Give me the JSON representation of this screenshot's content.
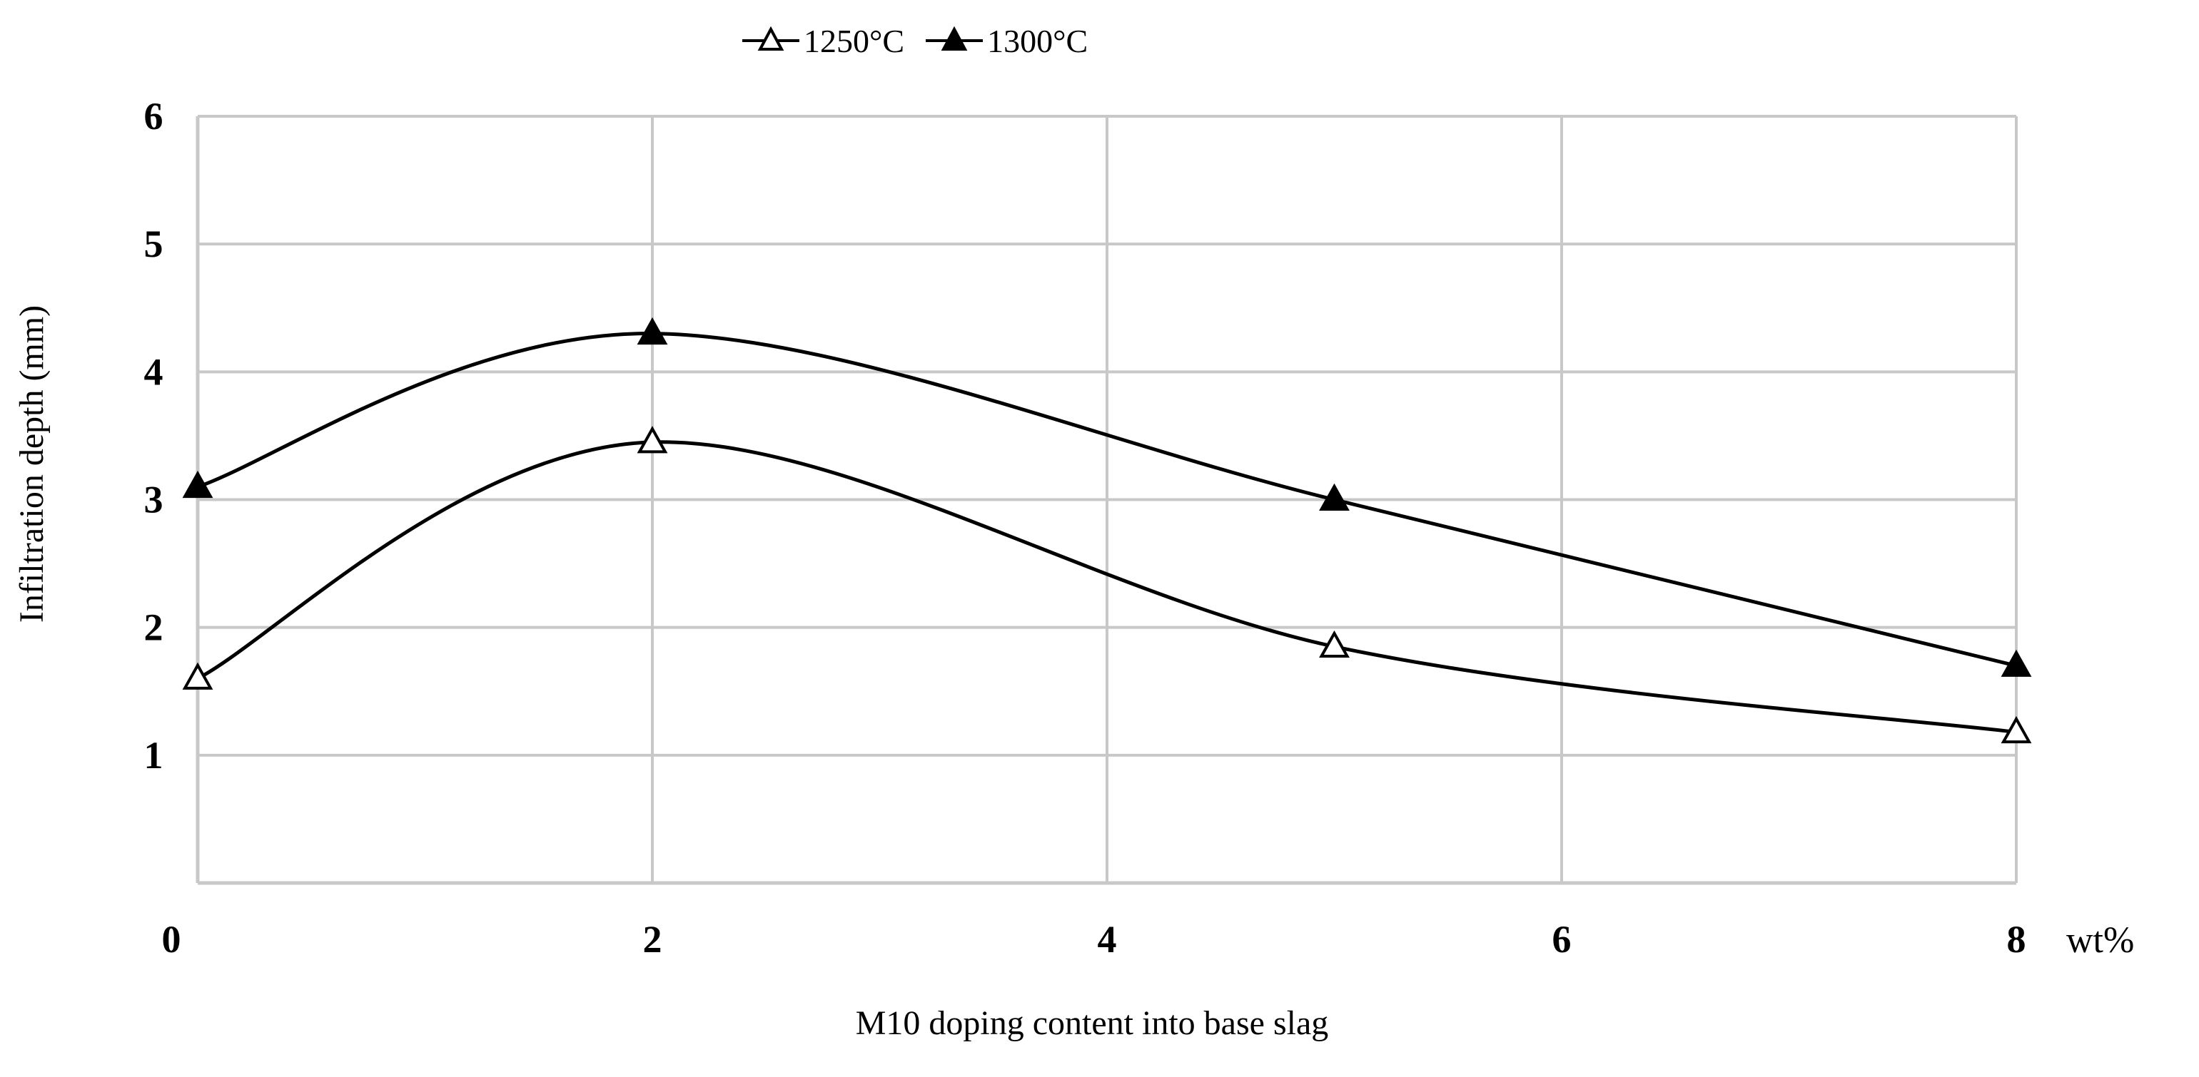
{
  "chart_data": {
    "type": "line",
    "title": "",
    "xlabel": "M10 doping content into base slag",
    "ylabel": "Infiltration depth (mm)",
    "x_unit": "wt%",
    "xlim": [
      0,
      8
    ],
    "ylim": [
      0,
      6
    ],
    "x_ticks": [
      0,
      2,
      4,
      6,
      8
    ],
    "y_ticks": [
      1,
      2,
      3,
      4,
      5,
      6
    ],
    "grid": true,
    "smooth": true,
    "legend_position": "top-center",
    "series": [
      {
        "name": "1250°C",
        "marker": "open-triangle",
        "x": [
          0,
          2,
          5,
          8
        ],
        "y": [
          1.6,
          3.45,
          1.85,
          1.18
        ]
      },
      {
        "name": "1300°C",
        "marker": "filled-triangle",
        "x": [
          0,
          2,
          5,
          8
        ],
        "y": [
          3.1,
          4.3,
          3.0,
          1.7
        ]
      }
    ],
    "colors": {
      "line": "#000000",
      "grid": "#c8c8c8",
      "background": "#ffffff"
    }
  }
}
